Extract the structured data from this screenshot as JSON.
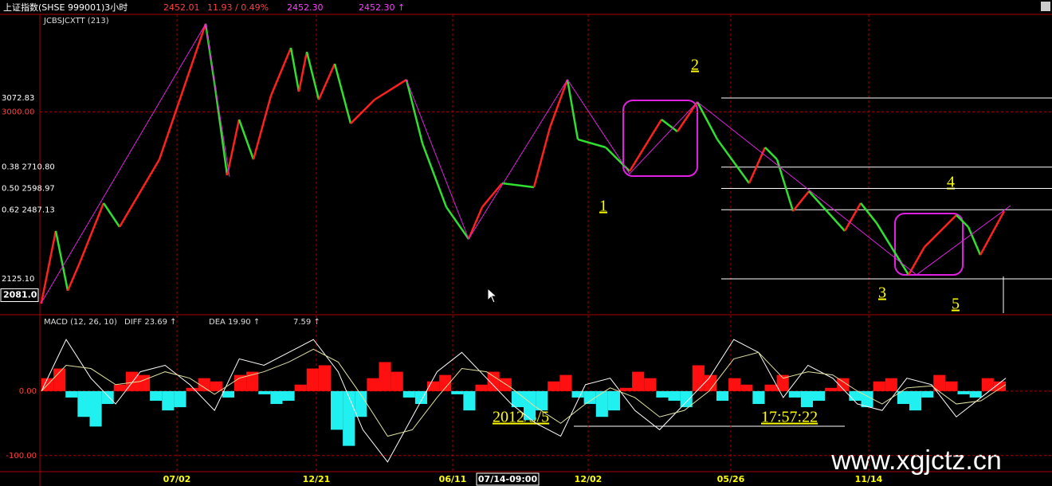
{
  "header": {
    "title": "上证指数(SHSE 999001)3小时",
    "price": "2452.01",
    "change": "11.93 / 0.49%",
    "value_a": "2452.30",
    "value_b": "2452.30 ↑"
  },
  "chart_data": [
    {
      "type": "line",
      "title": "JCBSJCXTT (213)",
      "x": [
        2,
        20,
        35,
        50,
        80,
        100,
        150,
        208,
        220,
        235,
        250,
        268,
        290,
        315,
        325,
        335,
        350,
        370,
        390,
        420,
        460,
        480,
        510,
        538,
        555,
        580,
        620,
        640,
        662,
        675,
        710,
        740,
        780,
        800,
        825,
        850,
        890,
        910,
        925,
        945,
        965,
        1010,
        1030,
        1050,
        1090,
        1110,
        1150,
        1165,
        1180,
        1210
      ],
      "values": [
        2000,
        2376,
        2063,
        2209,
        2522,
        2397,
        2751,
        3461,
        3127,
        2668,
        2960,
        2751,
        3085,
        3336,
        3106,
        3315,
        3064,
        3252,
        2939,
        3064,
        3169,
        2835,
        2501,
        2334,
        2501,
        2626,
        2605,
        2918,
        3169,
        2856,
        2814,
        2689,
        2960,
        2897,
        3052,
        2856,
        2626,
        2814,
        2751,
        2480,
        2584,
        2376,
        2522,
        2417,
        2146,
        2292,
        2459,
        2397,
        2250,
        2480
      ],
      "up_color": "#ff2020",
      "down_color": "#30e030",
      "overlay_lines": {
        "color": "#e020e0",
        "x": [
          2,
          208,
          238,
          300,
          460,
          538,
          662,
          740,
          825,
          1100,
          1218
        ],
        "values": [
          2000,
          3461,
          2660,
          null,
          3169,
          2334,
          3169,
          2676,
          3052,
          2146,
          2509
        ]
      },
      "xlim": [
        0,
        1270
      ],
      "ylim": [
        1937,
        3503
      ],
      "xticks": [
        {
          "value": 172,
          "label": "07/02"
        },
        {
          "value": 347,
          "label": "12/21"
        },
        {
          "value": 518,
          "label": "06/11"
        },
        {
          "value": 688,
          "label": "12/02"
        },
        {
          "value": 867,
          "label": "05/26"
        },
        {
          "value": 1040,
          "label": "11/14"
        }
      ],
      "yticks": [
        3072.83,
        {
          "value": 3000,
          "label": "3000.00"
        },
        {
          "value": 2710.8,
          "label": "0.38 2710.80"
        },
        {
          "value": 2598.97,
          "label": "0.50 2598.97"
        },
        {
          "value": 2487.13,
          "label": "0.62 2487.13"
        },
        {
          "value": 2125.1,
          "label": "2125.10"
        }
      ],
      "price_marker": {
        "value": 2081,
        "label": "2081.0"
      },
      "cursor_label": "07/14-09:00",
      "annotations": [
        "1",
        "2",
        "3",
        "4",
        "5"
      ]
    },
    {
      "type": "macd",
      "title": "MACD (12, 26, 10)",
      "diff_label": "DIFF  23.69 ↑",
      "dea_label": "DEA  19.90 ↑",
      "macd_label": "7.59 ↑",
      "histogram": [
        20,
        35,
        -10,
        -40,
        -55,
        -20,
        10,
        30,
        25,
        -15,
        -30,
        -25,
        5,
        20,
        15,
        -10,
        25,
        30,
        -5,
        -20,
        -15,
        10,
        35,
        40,
        -60,
        -85,
        -40,
        20,
        45,
        30,
        -10,
        -20,
        15,
        25,
        -5,
        -30,
        10,
        30,
        20,
        -25,
        -45,
        -30,
        15,
        25,
        -10,
        -20,
        -40,
        -30,
        5,
        30,
        20,
        -10,
        -15,
        -25,
        40,
        25,
        -15,
        20,
        10,
        -20,
        10,
        25,
        -10,
        -25,
        -15,
        5,
        20,
        -15,
        -25,
        15,
        20,
        -20,
        -30,
        -10,
        25,
        15,
        -5,
        -10,
        20,
        15
      ],
      "diff": [
        0,
        80,
        20,
        -20,
        30,
        40,
        10,
        -30,
        50,
        40,
        60,
        80,
        30,
        -60,
        -110,
        -40,
        30,
        60,
        20,
        -20,
        -50,
        -70,
        10,
        20,
        -30,
        -60,
        -20,
        20,
        80,
        60,
        -10,
        40,
        20,
        -20,
        -30,
        20,
        10,
        -40,
        -10,
        20
      ],
      "dea": [
        0,
        40,
        35,
        10,
        15,
        30,
        20,
        -5,
        20,
        30,
        45,
        65,
        45,
        -10,
        -70,
        -60,
        -10,
        35,
        30,
        5,
        -25,
        -50,
        -20,
        5,
        -10,
        -40,
        -30,
        0,
        50,
        60,
        20,
        30,
        25,
        0,
        -20,
        5,
        8,
        -20,
        -15,
        10
      ],
      "ylim": [
        -125,
        116
      ],
      "yticks": [
        {
          "value": 0,
          "label": "0.00"
        },
        {
          "value": -100,
          "label": "-100.00"
        }
      ],
      "date_text": "2012/5/5",
      "time_text": "17:57:22"
    }
  ],
  "watermark": "www.xgjctz.cn"
}
